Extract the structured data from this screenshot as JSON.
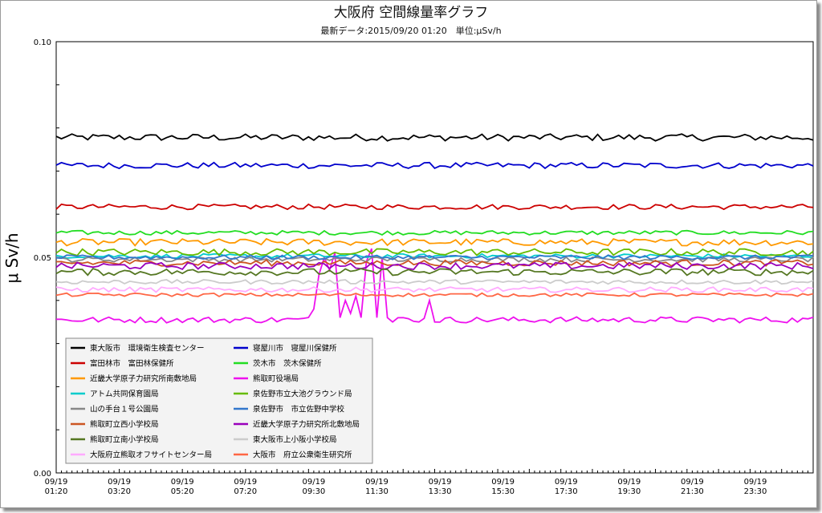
{
  "chart_data": {
    "type": "line",
    "title": "大阪府 空間線量率グラフ",
    "subtitle": "最新データ:2015/09/20 01:20　単位:μSv/h",
    "ylabel": "μ Sv/h",
    "xlabel": "",
    "ylim": [
      0.0,
      0.1
    ],
    "y_tick_labels": [
      "0.00",
      "0.05",
      "0.10"
    ],
    "x_tick_labels": [
      [
        "09/19",
        "01:20"
      ],
      [
        "09/19",
        "03:20"
      ],
      [
        "09/19",
        "05:20"
      ],
      [
        "09/19",
        "07:20"
      ],
      [
        "09/19",
        "09:30"
      ],
      [
        "09/19",
        "11:30"
      ],
      [
        "09/19",
        "13:30"
      ],
      [
        "09/19",
        "15:30"
      ],
      [
        "09/19",
        "17:30"
      ],
      [
        "09/19",
        "19:30"
      ],
      [
        "09/19",
        "21:30"
      ],
      [
        "09/19",
        "23:30"
      ]
    ],
    "x_hours": [
      0,
      2,
      4,
      6,
      8.167,
      10.167,
      12.167,
      14.167,
      16.167,
      18.167,
      20.167,
      22.167
    ],
    "x_range_hours": [
      0,
      24
    ],
    "grid": false,
    "legend_position": "bottom-left",
    "spike_series": "熊取町役場局",
    "spike_values": [
      [
        8.17,
        0.038
      ],
      [
        8.33,
        0.046
      ],
      [
        8.5,
        0.05
      ],
      [
        8.67,
        0.047
      ],
      [
        8.83,
        0.051
      ],
      [
        9.0,
        0.036
      ],
      [
        9.17,
        0.04
      ],
      [
        9.33,
        0.037
      ],
      [
        9.5,
        0.041
      ],
      [
        9.67,
        0.036
      ],
      [
        9.83,
        0.049
      ],
      [
        10.0,
        0.052
      ],
      [
        10.17,
        0.036
      ],
      [
        10.33,
        0.05
      ],
      [
        10.5,
        0.036
      ],
      [
        10.67,
        0.035
      ],
      [
        11.0,
        0.036
      ],
      [
        11.5,
        0.035
      ],
      [
        11.83,
        0.04
      ],
      [
        12.0,
        0.035
      ]
    ],
    "series": [
      {
        "name": "東大阪市　環境衛生検査センター",
        "color": "#000000",
        "base": 0.0778,
        "noise": 0.0008
      },
      {
        "name": "寝屋川市　寝屋川保健所",
        "color": "#0000cc",
        "base": 0.0713,
        "noise": 0.0007
      },
      {
        "name": "富田林市　富田林保健所",
        "color": "#cc0000",
        "base": 0.0617,
        "noise": 0.0006
      },
      {
        "name": "茨木市　茨木保健所",
        "color": "#22dd22",
        "base": 0.0557,
        "noise": 0.0005
      },
      {
        "name": "近畿大学原子力研究所南敷地局",
        "color": "#ff9900",
        "base": 0.0535,
        "noise": 0.0008
      },
      {
        "name": "熊取町役場局",
        "color": "#ee11ee",
        "base": 0.0355,
        "noise": 0.0007
      },
      {
        "name": "アトム共同保育園局",
        "color": "#00cccc",
        "base": 0.0503,
        "noise": 0.0005
      },
      {
        "name": "泉佐野市立大池グラウンド局",
        "color": "#66bb00",
        "base": 0.0512,
        "noise": 0.0008
      },
      {
        "name": "山の手台１号公園局",
        "color": "#888888",
        "base": 0.0495,
        "noise": 0.0006
      },
      {
        "name": "泉佐野市　市立佐野中学校",
        "color": "#3377cc",
        "base": 0.05,
        "noise": 0.0005
      },
      {
        "name": "熊取町立西小学校局",
        "color": "#cc5522",
        "base": 0.0487,
        "noise": 0.0007
      },
      {
        "name": "近畿大学原子力研究所北敷地局",
        "color": "#9900bb",
        "base": 0.048,
        "noise": 0.0008
      },
      {
        "name": "熊取町立南小学校局",
        "color": "#557722",
        "base": 0.0466,
        "noise": 0.0008
      },
      {
        "name": "東大阪市上小阪小学校局",
        "color": "#cccccc",
        "base": 0.0443,
        "noise": 0.0005
      },
      {
        "name": "大阪府立熊取オフサイトセンター局",
        "color": "#ffaaff",
        "base": 0.0425,
        "noise": 0.0006
      },
      {
        "name": "大阪市　府立公衆衛生研究所",
        "color": "#ff6644",
        "base": 0.0413,
        "noise": 0.0004
      }
    ]
  }
}
